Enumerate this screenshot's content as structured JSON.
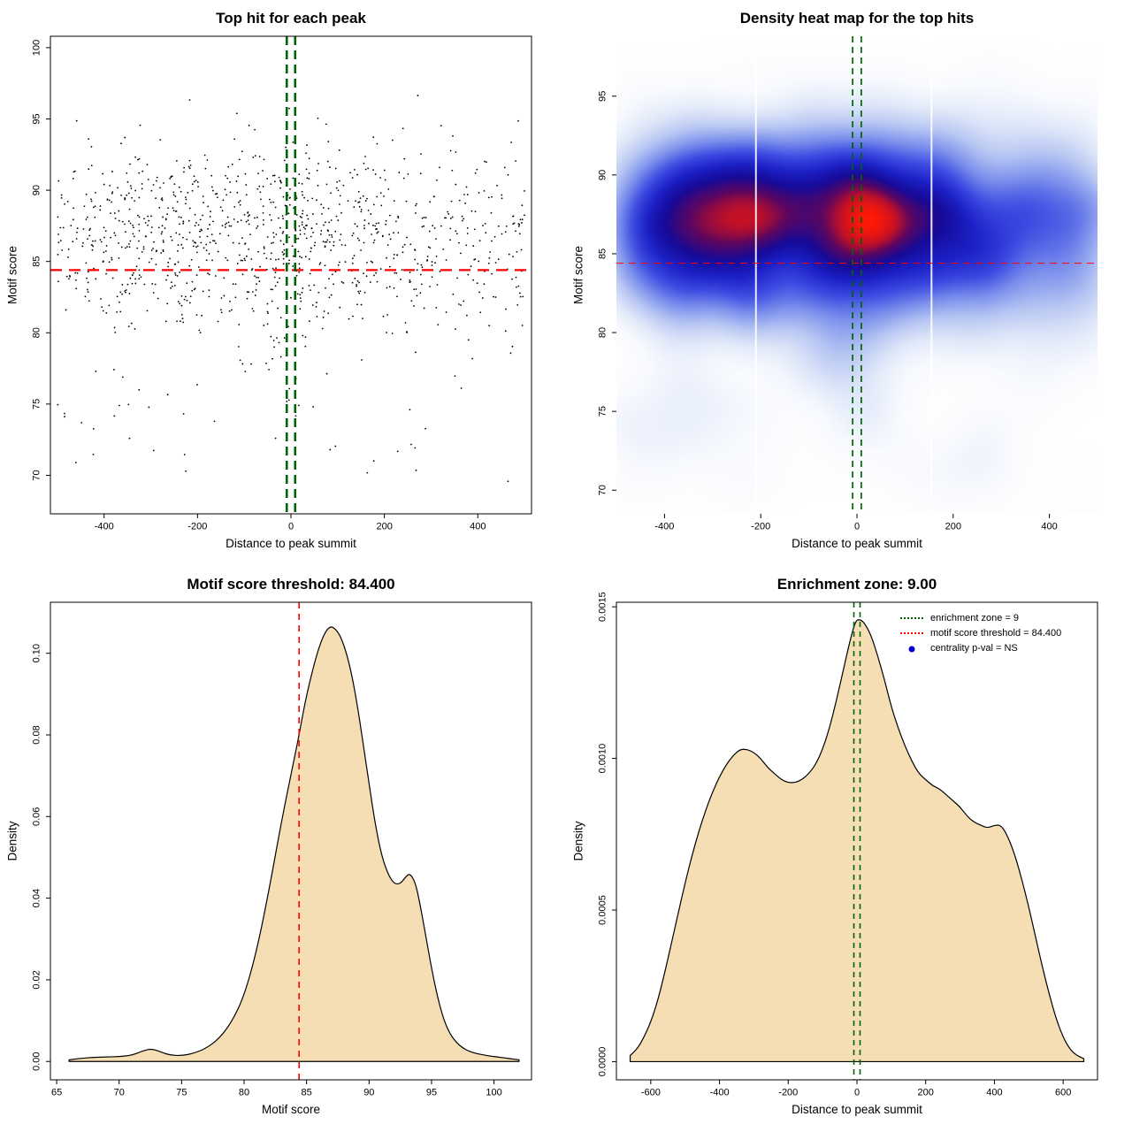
{
  "page": {
    "background": "#ffffff"
  },
  "chart_data": [
    {
      "type": "scatter",
      "title": "Top hit for each peak",
      "xlabel": "Distance to peak summit",
      "ylabel": "Motif score",
      "xlim": [
        -515,
        515
      ],
      "ylim": [
        67.3,
        100.8
      ],
      "xticks": [
        -400,
        -200,
        0,
        200,
        400
      ],
      "xtick_labels": [
        "-400",
        "-200",
        "0",
        "200",
        "400"
      ],
      "yticks": [
        70,
        75,
        80,
        85,
        90,
        95,
        100
      ],
      "ytick_labels": [
        "70",
        "75",
        "80",
        "85",
        "90",
        "95",
        "100"
      ],
      "point_color": "#000000",
      "hline": {
        "y": 84.4,
        "color": "#FF0000"
      },
      "vlines": {
        "x": [
          -9,
          9
        ],
        "color": "#006400"
      },
      "points": {
        "seed": 20240,
        "n": 1150,
        "x": {
          "uniform_frac": 0.65,
          "range": [
            -500,
            500
          ],
          "clusters": [
            {
              "frac": 0.22,
              "mean": 15,
              "sd": 130
            },
            {
              "frac": 0.13,
              "mean": -300,
              "sd": 85
            }
          ]
        },
        "y": {
          "mean": 86.8,
          "sd": 3.4,
          "min": 68,
          "max": 99.8,
          "low_tail_frac": 0.055,
          "low_tail_range": [
            69.5,
            81
          ]
        }
      }
    },
    {
      "type": "heatmap",
      "title": "Density heat map for the top hits",
      "xlabel": "Distance to peak summit",
      "ylabel": "Motif score",
      "xlim": [
        -500,
        500
      ],
      "ylim": [
        68.5,
        98.8
      ],
      "xticks": [
        -400,
        -200,
        0,
        200,
        400
      ],
      "xtick_labels": [
        "-400",
        "-200",
        "0",
        "200",
        "400"
      ],
      "yticks": [
        70,
        75,
        80,
        85,
        90,
        95
      ],
      "ytick_labels": [
        "70",
        "75",
        "80",
        "85",
        "90",
        "95"
      ],
      "hline": {
        "y": 84.4,
        "color": "#FF0000"
      },
      "vlines": {
        "x": [
          -9,
          9
        ],
        "color": "#006400"
      },
      "bandwidth": {
        "x": 52,
        "y": 1.6
      },
      "artifact_lines_x": [
        -210,
        155
      ],
      "colormap": [
        [
          0.0,
          255,
          255,
          255
        ],
        [
          0.07,
          248,
          250,
          254
        ],
        [
          0.16,
          224,
          232,
          249
        ],
        [
          0.28,
          183,
          198,
          243
        ],
        [
          0.42,
          122,
          142,
          236
        ],
        [
          0.55,
          62,
          76,
          226
        ],
        [
          0.67,
          28,
          32,
          198
        ],
        [
          0.77,
          22,
          10,
          152
        ],
        [
          0.855,
          92,
          6,
          96
        ],
        [
          0.92,
          192,
          16,
          40
        ],
        [
          1.0,
          255,
          26,
          6
        ]
      ],
      "points": {
        "seed": 20240,
        "n": 1150,
        "x": {
          "uniform_frac": 0.65,
          "range": [
            -500,
            500
          ],
          "clusters": [
            {
              "frac": 0.22,
              "mean": 15,
              "sd": 130
            },
            {
              "frac": 0.13,
              "mean": -300,
              "sd": 85
            }
          ]
        },
        "y": {
          "mean": 86.8,
          "sd": 3.4,
          "min": 68,
          "max": 99.8,
          "low_tail_frac": 0.055,
          "low_tail_range": [
            69.5,
            81
          ]
        }
      }
    },
    {
      "type": "density",
      "title": "Motif score threshold: 84.400",
      "xlabel": "Motif score",
      "ylabel": "Density",
      "xlim": [
        64.5,
        103
      ],
      "ylim": [
        -0.0045,
        0.1125
      ],
      "xticks": [
        65,
        70,
        75,
        80,
        85,
        90,
        95,
        100
      ],
      "xtick_labels": [
        "65",
        "70",
        "75",
        "80",
        "85",
        "90",
        "95",
        "100"
      ],
      "yticks": [
        0,
        0.02,
        0.04,
        0.06,
        0.08,
        0.1
      ],
      "ytick_labels": [
        "0.00",
        "0.02",
        "0.04",
        "0.06",
        "0.08",
        "0.10"
      ],
      "fill": "#F5DEB3",
      "vline": {
        "x": 84.4,
        "color": "#FF0000"
      },
      "curve": [
        [
          66,
          0.0004
        ],
        [
          67,
          0.0008
        ],
        [
          68,
          0.001
        ],
        [
          69,
          0.0011
        ],
        [
          70,
          0.0012
        ],
        [
          71,
          0.0015
        ],
        [
          72,
          0.0027
        ],
        [
          72.6,
          0.0031
        ],
        [
          73.2,
          0.0025
        ],
        [
          74,
          0.0016
        ],
        [
          75,
          0.0014
        ],
        [
          76,
          0.002
        ],
        [
          77,
          0.0033
        ],
        [
          78,
          0.0056
        ],
        [
          79,
          0.0096
        ],
        [
          80,
          0.016
        ],
        [
          81,
          0.027
        ],
        [
          82,
          0.042
        ],
        [
          83,
          0.059
        ],
        [
          84,
          0.074
        ],
        [
          84.4,
          0.08
        ],
        [
          85,
          0.09
        ],
        [
          86,
          0.102
        ],
        [
          86.8,
          0.107
        ],
        [
          87.5,
          0.1055
        ],
        [
          88,
          0.102
        ],
        [
          88.5,
          0.0965
        ],
        [
          89,
          0.0885
        ],
        [
          89.5,
          0.0785
        ],
        [
          90,
          0.068
        ],
        [
          90.5,
          0.058
        ],
        [
          91,
          0.0505
        ],
        [
          91.5,
          0.046
        ],
        [
          92,
          0.0435
        ],
        [
          92.5,
          0.0435
        ],
        [
          93,
          0.0455
        ],
        [
          93.3,
          0.046
        ],
        [
          93.7,
          0.0438
        ],
        [
          94,
          0.0398
        ],
        [
          94.5,
          0.0315
        ],
        [
          95,
          0.0228
        ],
        [
          95.5,
          0.0155
        ],
        [
          96,
          0.01
        ],
        [
          96.5,
          0.0066
        ],
        [
          97,
          0.0046
        ],
        [
          97.5,
          0.0033
        ],
        [
          98,
          0.0025
        ],
        [
          98.5,
          0.002
        ],
        [
          99,
          0.0017
        ],
        [
          99.5,
          0.0014
        ],
        [
          100,
          0.0012
        ],
        [
          100.5,
          0.001
        ],
        [
          101,
          0.0008
        ],
        [
          101.5,
          0.0006
        ],
        [
          102,
          0.0004
        ]
      ]
    },
    {
      "type": "density",
      "title": "Enrichment zone: 9.00",
      "xlabel": "Distance to peak summit",
      "ylabel": "Density",
      "xlim": [
        -700,
        700
      ],
      "ylim": [
        -6e-05,
        0.001515
      ],
      "xticks": [
        -600,
        -400,
        -200,
        0,
        200,
        400,
        600
      ],
      "xtick_labels": [
        "-600",
        "-400",
        "-200",
        "0",
        "200",
        "400",
        "600"
      ],
      "yticks": [
        0,
        0.0005,
        0.001,
        0.0015
      ],
      "ytick_labels": [
        "0.0000",
        "0.0005",
        "0.0010",
        "0.0015"
      ],
      "fill": "#F5DEB3",
      "vlines": {
        "x": [
          -9,
          9
        ],
        "color": "#006400"
      },
      "legend": [
        {
          "label": "enrichment zone = 9",
          "color": "#006400",
          "marker": "dotted-line"
        },
        {
          "label": "motif score threshold = 84.400",
          "color": "#FF0000",
          "marker": "dotted-line"
        },
        {
          "label": "centrality p-val = NS",
          "color": "#0000CC",
          "marker": "dot"
        }
      ],
      "curve": [
        [
          -660,
          2e-05
        ],
        [
          -640,
          4e-05
        ],
        [
          -620,
          8e-05
        ],
        [
          -600,
          0.00013
        ],
        [
          -580,
          0.0002
        ],
        [
          -560,
          0.00029
        ],
        [
          -540,
          0.00039
        ],
        [
          -520,
          0.00049
        ],
        [
          -500,
          0.00059
        ],
        [
          -480,
          0.00068
        ],
        [
          -460,
          0.00076
        ],
        [
          -440,
          0.00083
        ],
        [
          -420,
          0.00089
        ],
        [
          -400,
          0.00094
        ],
        [
          -380,
          0.00098
        ],
        [
          -360,
          0.00101
        ],
        [
          -340,
          0.00103
        ],
        [
          -320,
          0.00103
        ],
        [
          -300,
          0.00102
        ],
        [
          -280,
          0.001
        ],
        [
          -260,
          0.00097
        ],
        [
          -240,
          0.00095
        ],
        [
          -220,
          0.00093
        ],
        [
          -200,
          0.00092
        ],
        [
          -180,
          0.00092
        ],
        [
          -160,
          0.00093
        ],
        [
          -140,
          0.00095
        ],
        [
          -120,
          0.00098
        ],
        [
          -100,
          0.00103
        ],
        [
          -80,
          0.0011
        ],
        [
          -60,
          0.00119
        ],
        [
          -40,
          0.00129
        ],
        [
          -20,
          0.00139
        ],
        [
          -5,
          0.00145
        ],
        [
          5,
          0.00146
        ],
        [
          20,
          0.00145
        ],
        [
          40,
          0.00141
        ],
        [
          60,
          0.00134
        ],
        [
          80,
          0.00126
        ],
        [
          100,
          0.00117
        ],
        [
          120,
          0.0011
        ],
        [
          140,
          0.00104
        ],
        [
          160,
          0.00099
        ],
        [
          180,
          0.00095
        ],
        [
          200,
          0.00093
        ],
        [
          220,
          0.00091
        ],
        [
          240,
          0.0009
        ],
        [
          260,
          0.00088
        ],
        [
          280,
          0.00086
        ],
        [
          300,
          0.00084
        ],
        [
          320,
          0.00081
        ],
        [
          340,
          0.00079
        ],
        [
          360,
          0.00078
        ],
        [
          380,
          0.00077
        ],
        [
          400,
          0.00078
        ],
        [
          420,
          0.00078
        ],
        [
          440,
          0.00074
        ],
        [
          460,
          0.00068
        ],
        [
          480,
          0.0006
        ],
        [
          500,
          0.00051
        ],
        [
          520,
          0.00041
        ],
        [
          540,
          0.00031
        ],
        [
          560,
          0.00022
        ],
        [
          580,
          0.00014
        ],
        [
          600,
          8e-05
        ],
        [
          620,
          4e-05
        ],
        [
          640,
          2e-05
        ],
        [
          660,
          1e-05
        ]
      ]
    }
  ]
}
